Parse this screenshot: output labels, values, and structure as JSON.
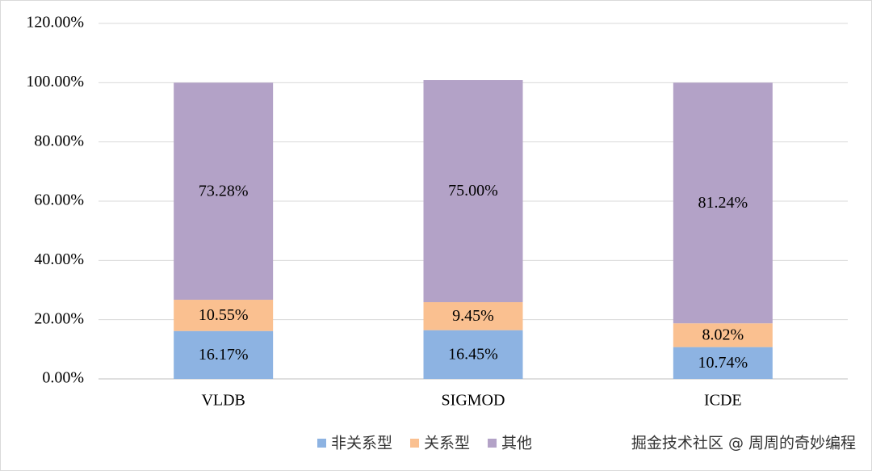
{
  "chart_data": {
    "type": "stacked-bar",
    "categories": [
      "VLDB",
      "SIGMOD",
      "ICDE"
    ],
    "series": [
      {
        "name": "非关系型",
        "color": "#8db3e2",
        "values": [
          16.17,
          16.45,
          10.74
        ],
        "value_labels": [
          "16.17%",
          "16.45%",
          "10.74%"
        ]
      },
      {
        "name": "关系型",
        "color": "#fac090",
        "values": [
          10.55,
          9.45,
          8.02
        ],
        "value_labels": [
          "10.55%",
          "9.45%",
          "8.02%"
        ]
      },
      {
        "name": "其他",
        "color": "#b3a2c7",
        "values": [
          73.28,
          75.0,
          81.24
        ],
        "value_labels": [
          "73.28%",
          "75.00%",
          "81.24%"
        ]
      }
    ],
    "ylim": [
      0,
      120
    ],
    "yticks": [
      {
        "value": 0,
        "label": "0.00%"
      },
      {
        "value": 20,
        "label": "20.00%"
      },
      {
        "value": 40,
        "label": "40.00%"
      },
      {
        "value": 60,
        "label": "60.00%"
      },
      {
        "value": 80,
        "label": "80.00%"
      },
      {
        "value": 100,
        "label": "100.00%"
      },
      {
        "value": 120,
        "label": "120.00%"
      }
    ],
    "grid": true,
    "legend": "bottom",
    "watermark": "掘金技术社区 @ 周周的奇妙编程"
  }
}
